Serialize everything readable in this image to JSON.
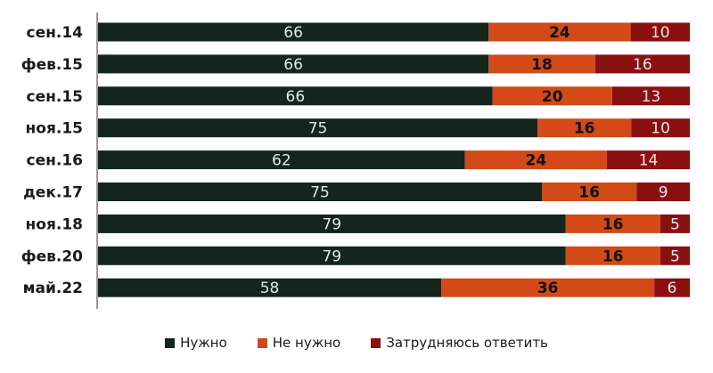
{
  "chart_data": {
    "type": "bar",
    "orientation": "horizontal",
    "stacked": true,
    "categories": [
      "сен.14",
      "фев.15",
      "сен.15",
      "ноя.15",
      "сен.16",
      "дек.17",
      "ноя.18",
      "фев.20",
      "май.22"
    ],
    "series": [
      {
        "name": "Нужно",
        "color": "#13251d",
        "label_color": "#dfe9e5",
        "label_bold": false,
        "values": [
          66,
          66,
          66,
          75,
          62,
          75,
          79,
          79,
          58
        ]
      },
      {
        "name": "Не нужно",
        "color": "#d24a17",
        "label_color": "#111111",
        "label_bold": true,
        "values": [
          24,
          18,
          20,
          16,
          24,
          16,
          16,
          16,
          36
        ]
      },
      {
        "name": "Затрудняюсь ответить",
        "color": "#8a1010",
        "label_color": "#f3e3e3",
        "label_bold": false,
        "values": [
          10,
          16,
          13,
          10,
          14,
          9,
          5,
          5,
          6
        ]
      }
    ],
    "legend_position": "bottom",
    "grid": false
  }
}
